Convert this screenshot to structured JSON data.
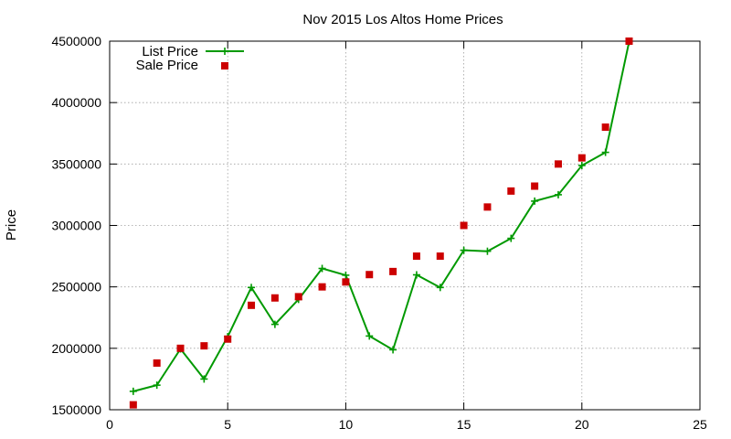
{
  "chart_data": {
    "type": "line",
    "title": "Nov 2015 Los Altos Home Prices",
    "xlabel": "",
    "ylabel": "Price",
    "xlim": [
      0,
      25
    ],
    "ylim": [
      1500000,
      4500000
    ],
    "xticks": [
      0,
      5,
      10,
      15,
      20,
      25
    ],
    "yticks": [
      1500000,
      2000000,
      2500000,
      3000000,
      3500000,
      4000000,
      4500000
    ],
    "grid": true,
    "legend_position": "top-left",
    "series": [
      {
        "name": "List Price",
        "style": "line-with-plus-markers",
        "color": "#009900",
        "x": [
          1,
          2,
          3,
          4,
          5,
          6,
          7,
          8,
          9,
          10,
          11,
          12,
          13,
          14,
          15,
          16,
          17,
          18,
          19,
          20,
          21,
          22
        ],
        "y": [
          1650000,
          1700000,
          1995000,
          1750000,
          2095000,
          2495000,
          2195000,
          2398000,
          2650000,
          2595000,
          2100000,
          1988000,
          2598000,
          2495000,
          2798000,
          2790000,
          2895000,
          3198000,
          3250000,
          3488000,
          3595000,
          4495000
        ]
      },
      {
        "name": "Sale Price",
        "style": "square-markers",
        "color": "#cc0000",
        "x": [
          1,
          2,
          3,
          4,
          5,
          6,
          7,
          8,
          9,
          10,
          11,
          12,
          13,
          14,
          15,
          16,
          17,
          18,
          19,
          20,
          21,
          22
        ],
        "y": [
          1540000,
          1880000,
          2000000,
          2020000,
          2075000,
          2350000,
          2410000,
          2420000,
          2500000,
          2540000,
          2600000,
          2625000,
          2750000,
          2750000,
          3000000,
          3150000,
          3280000,
          3320000,
          3500000,
          3550000,
          3800000,
          4500000
        ]
      }
    ]
  }
}
